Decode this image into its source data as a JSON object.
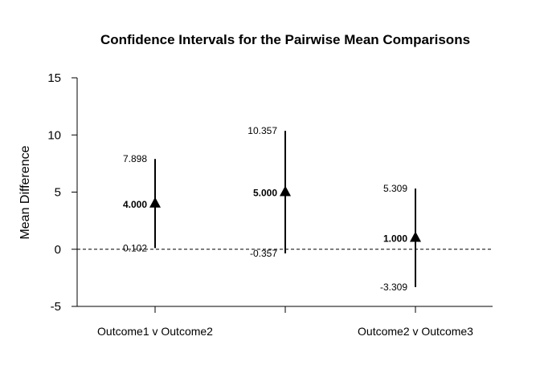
{
  "chart_data": {
    "type": "errorbar",
    "title": "Confidence Intervals for the Pairwise Mean Comparisons",
    "ylabel": "Mean Difference",
    "ylim": [
      -5,
      15
    ],
    "yticks": [
      -5,
      0,
      5,
      10,
      15
    ],
    "reference_line": 0,
    "categories": [
      "Outcome1 v Outcome2",
      "",
      "Outcome2 v Outcome3"
    ],
    "points": [
      {
        "mean": 4.0,
        "lower": 0.102,
        "upper": 7.898,
        "mean_label": "4.000",
        "lower_label": "0.102",
        "upper_label": "7.898"
      },
      {
        "mean": 5.0,
        "lower": -0.357,
        "upper": 10.357,
        "mean_label": "5.000",
        "lower_label": "-0.357",
        "upper_label": "10.357"
      },
      {
        "mean": 1.0,
        "lower": -3.309,
        "upper": 5.309,
        "mean_label": "1.000",
        "lower_label": "-3.309",
        "upper_label": "5.309"
      }
    ]
  }
}
